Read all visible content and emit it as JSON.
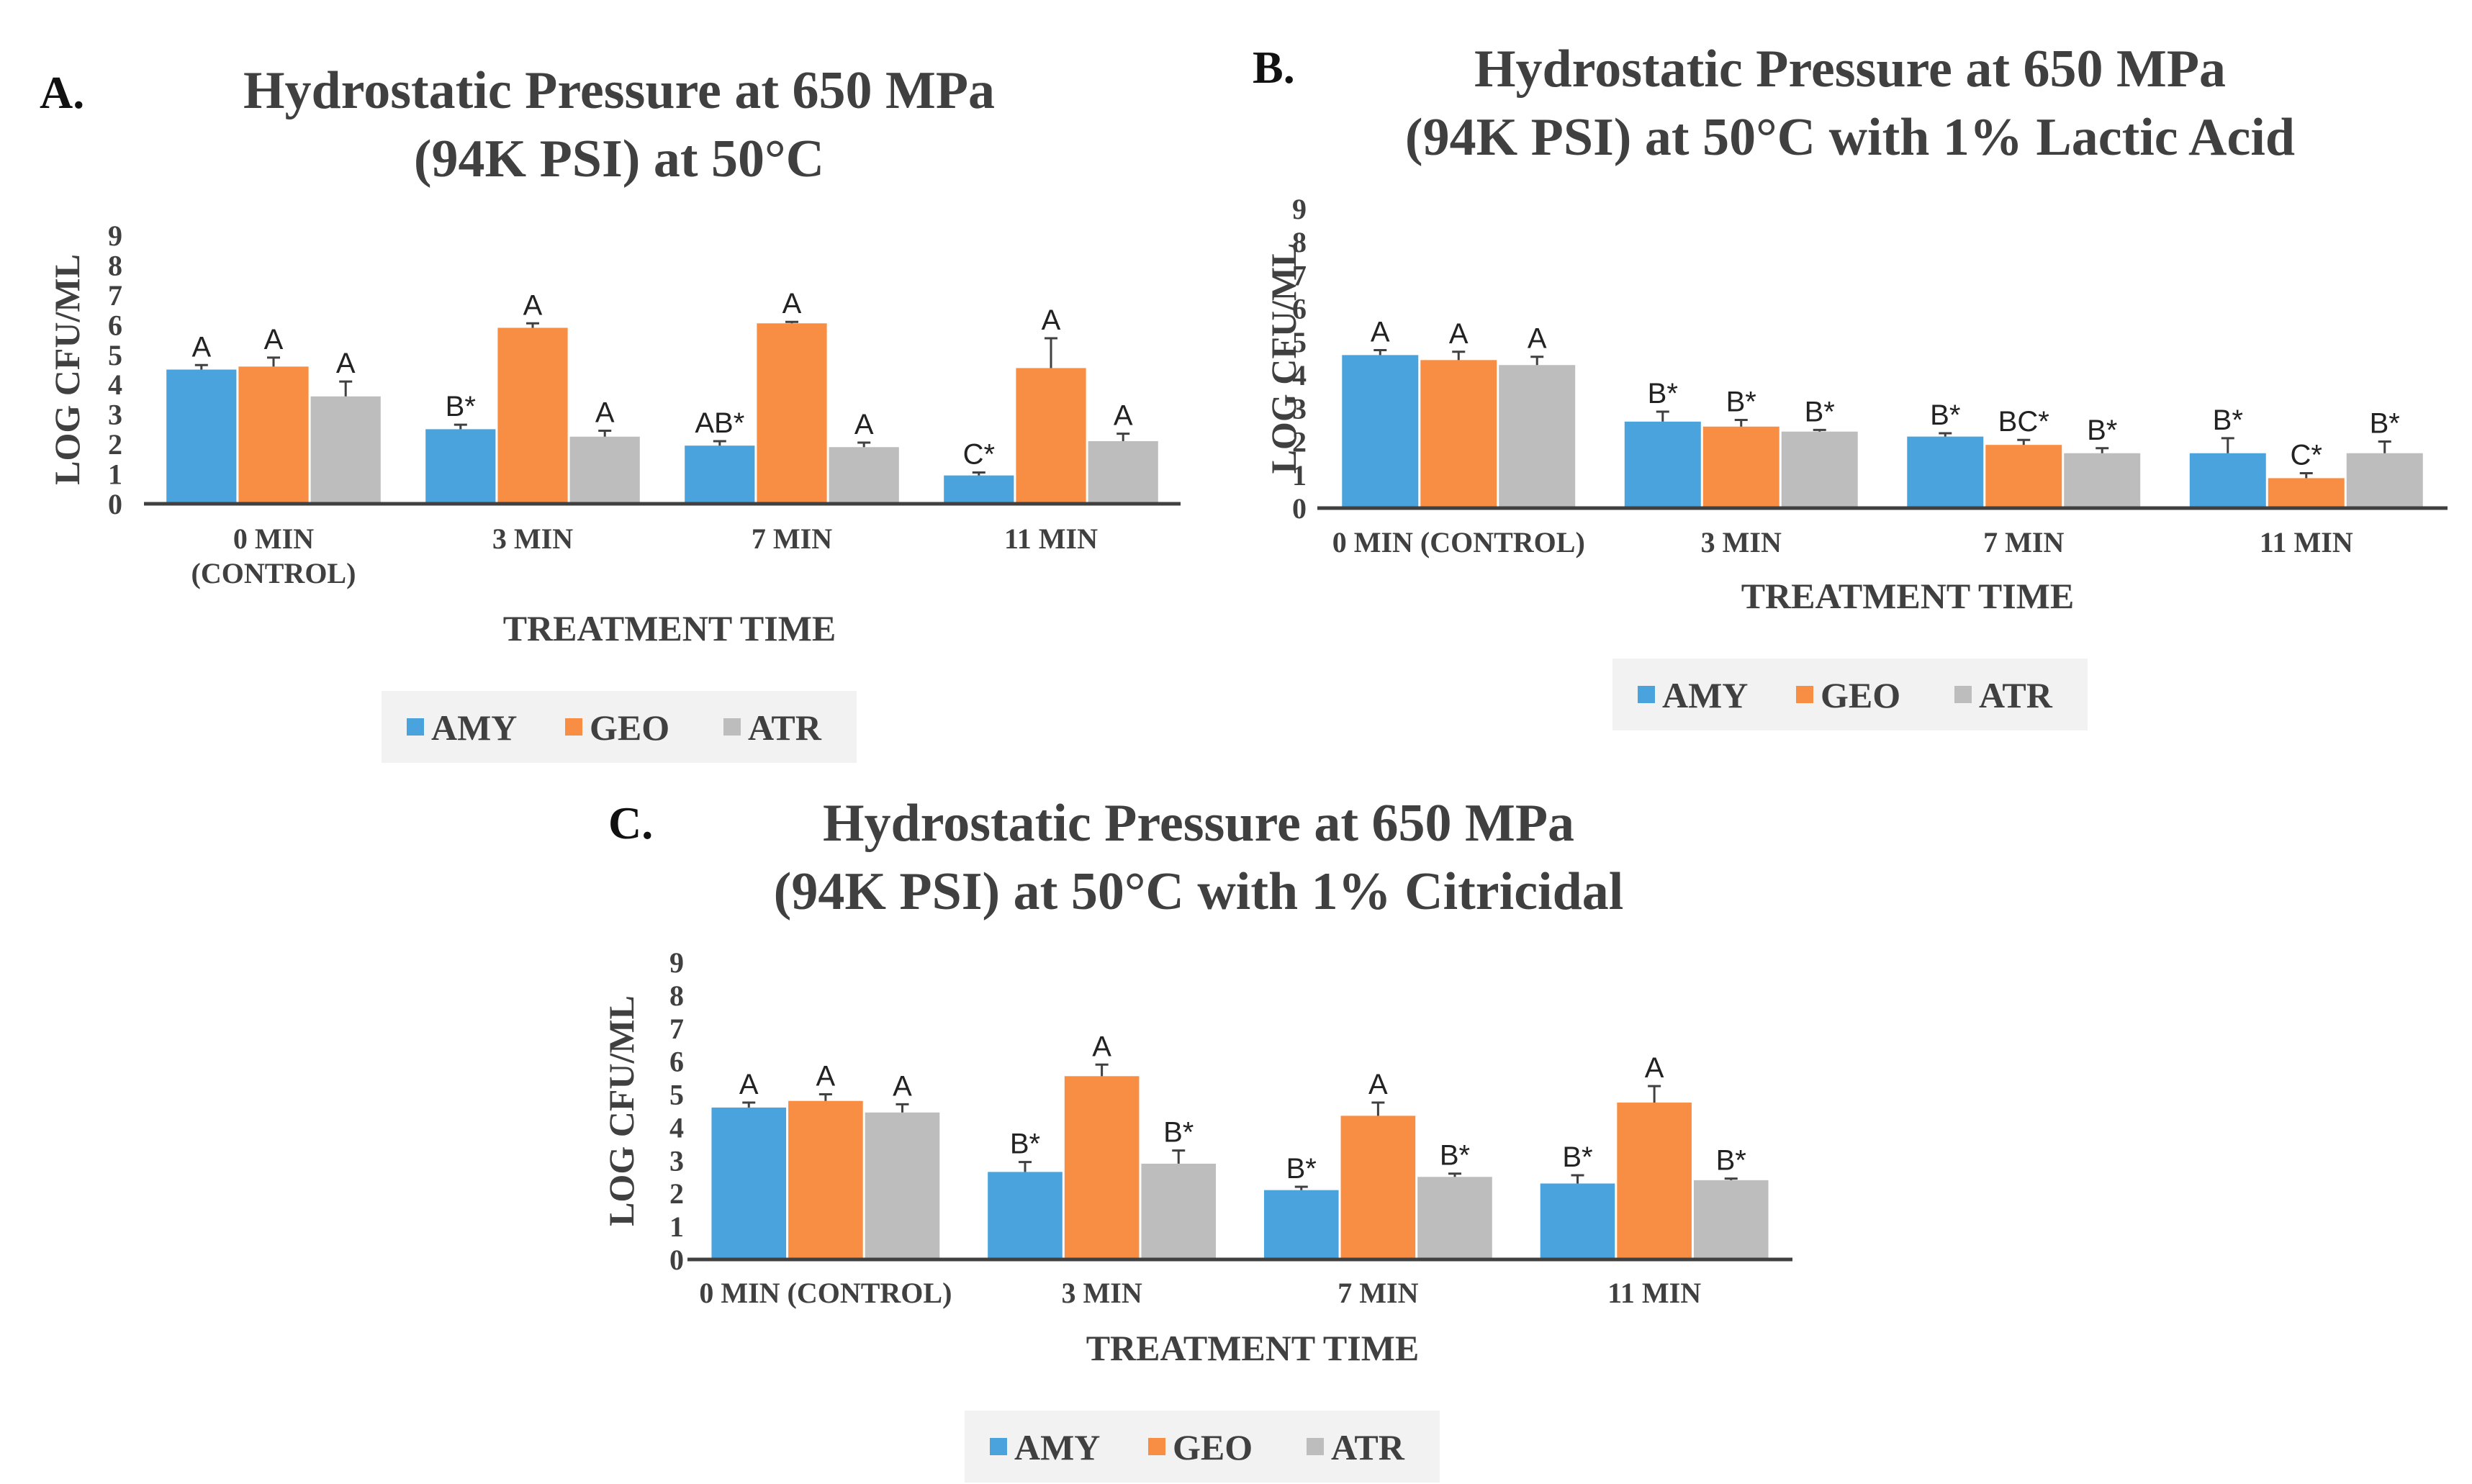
{
  "colors": {
    "AMY": "#4BA3DD",
    "GEO": "#F88E44",
    "ATR": "#BDBDBD",
    "axis": "#404040",
    "error_bar": "#404040",
    "legend_bg": "#F2F2F2"
  },
  "chart_data": [
    {
      "type": "bar",
      "panel": "A.",
      "title_lines": [
        "Hydrostatic Pressure at 650 MPa",
        "(94K PSI) at 50°C"
      ],
      "ylabel": "LOG CFU/ML",
      "xlabel": "TREATMENT TIME",
      "ylim": [
        0,
        9
      ],
      "yticks": [
        "0",
        "1",
        "2",
        "3",
        "4",
        "5",
        "6",
        "7",
        "8",
        "9"
      ],
      "categories": [
        [
          "0 MIN",
          "(CONTROL)"
        ],
        [
          "3 MIN"
        ],
        [
          "7 MIN"
        ],
        [
          "11 MIN"
        ]
      ],
      "legend": [
        "AMY",
        "GEO",
        "ATR"
      ],
      "series": [
        {
          "name": "AMY",
          "values": [
            4.5,
            2.5,
            1.95,
            0.95
          ],
          "errors": [
            0.15,
            0.15,
            0.15,
            0.1
          ],
          "labels": [
            "A",
            "B*",
            "AB*",
            "C*"
          ]
        },
        {
          "name": "GEO",
          "values": [
            4.6,
            5.9,
            6.05,
            4.55
          ],
          "errors": [
            0.3,
            0.15,
            0.05,
            1.0
          ],
          "labels": [
            "A",
            "A",
            "A",
            "A"
          ]
        },
        {
          "name": "ATR",
          "values": [
            3.6,
            2.25,
            1.9,
            2.1
          ],
          "errors": [
            0.5,
            0.2,
            0.15,
            0.25
          ],
          "labels": [
            "A",
            "A",
            "A",
            "A"
          ]
        }
      ]
    },
    {
      "type": "bar",
      "panel": "B.",
      "title_lines": [
        "Hydrostatic Pressure at 650 MPa",
        "(94K PSI) at 50°C with 1% Lactic Acid"
      ],
      "ylabel": "LOG CFU/ML",
      "xlabel": "TREATMENT TIME",
      "ylim": [
        0,
        9
      ],
      "yticks": [
        "0",
        "1",
        "2",
        "3",
        "4",
        "5",
        "6",
        "7",
        "8",
        "9"
      ],
      "categories": [
        [
          "0 MIN (CONTROL)"
        ],
        [
          "3 MIN"
        ],
        [
          "7 MIN"
        ],
        [
          "11 MIN"
        ]
      ],
      "legend": [
        "AMY",
        "GEO",
        "ATR"
      ],
      "series": [
        {
          "name": "AMY",
          "values": [
            4.6,
            2.6,
            2.15,
            1.65
          ],
          "errors": [
            0.15,
            0.3,
            0.1,
            0.45
          ],
          "labels": [
            "A",
            "B*",
            "B*",
            "B*"
          ]
        },
        {
          "name": "GEO",
          "values": [
            4.45,
            2.45,
            1.9,
            0.9
          ],
          "errors": [
            0.25,
            0.2,
            0.15,
            0.15
          ],
          "labels": [
            "A",
            "B*",
            "BC*",
            "C*"
          ]
        },
        {
          "name": "ATR",
          "values": [
            4.3,
            2.3,
            1.65,
            1.65
          ],
          "errors": [
            0.25,
            0.05,
            0.15,
            0.35
          ],
          "labels": [
            "A",
            "B*",
            "B*",
            "B*"
          ]
        }
      ]
    },
    {
      "type": "bar",
      "panel": "C.",
      "title_lines": [
        "Hydrostatic Pressure at 650 MPa",
        "(94K PSI) at 50°C with 1% Citricidal"
      ],
      "ylabel": "LOG CFU/ML",
      "xlabel": "TREATMENT TIME",
      "ylim": [
        0,
        9
      ],
      "yticks": [
        "0",
        "1",
        "2",
        "3",
        "4",
        "5",
        "6",
        "7",
        "8",
        "9"
      ],
      "categories": [
        [
          "0 MIN (CONTROL)"
        ],
        [
          "3 MIN"
        ],
        [
          "7 MIN"
        ],
        [
          "11 MIN"
        ]
      ],
      "legend": [
        "AMY",
        "GEO",
        "ATR"
      ],
      "series": [
        {
          "name": "AMY",
          "values": [
            4.6,
            2.65,
            2.1,
            2.3
          ],
          "errors": [
            0.15,
            0.3,
            0.1,
            0.25
          ],
          "labels": [
            "A",
            "B*",
            "B*",
            "B*"
          ]
        },
        {
          "name": "GEO",
          "values": [
            4.8,
            5.55,
            4.35,
            4.75
          ],
          "errors": [
            0.2,
            0.35,
            0.4,
            0.5
          ],
          "labels": [
            "A",
            "A",
            "A",
            "A"
          ]
        },
        {
          "name": "ATR",
          "values": [
            4.45,
            2.9,
            2.5,
            2.4
          ],
          "errors": [
            0.25,
            0.4,
            0.1,
            0.05
          ],
          "labels": [
            "A",
            "B*",
            "B*",
            "B*"
          ]
        }
      ]
    }
  ]
}
